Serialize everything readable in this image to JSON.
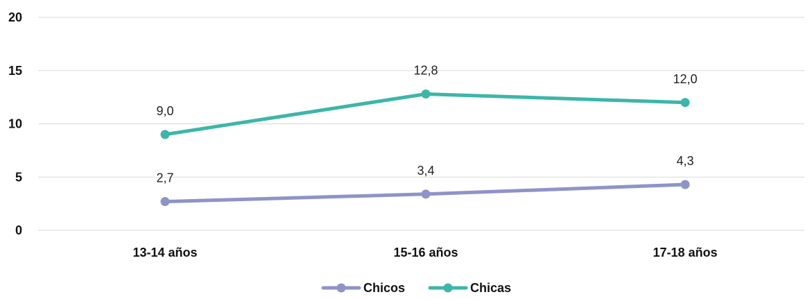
{
  "chart_data": {
    "type": "line",
    "categories": [
      "13-14 años",
      "15-16 años",
      "17-18 años"
    ],
    "series": [
      {
        "name": "Chicos",
        "values": [
          2.7,
          3.4,
          4.3
        ],
        "labels": [
          "2,7",
          "3,4",
          "4,3"
        ],
        "color": "#8e93c8"
      },
      {
        "name": "Chicas",
        "values": [
          9.0,
          12.8,
          12.0
        ],
        "labels": [
          "9,0",
          "12,8",
          "12,0"
        ],
        "color": "#3cb6a8"
      }
    ],
    "y_ticks": [
      0,
      5,
      10,
      15,
      20
    ],
    "ylim": [
      0,
      20
    ],
    "grid": true,
    "legend_position": "bottom-center"
  }
}
